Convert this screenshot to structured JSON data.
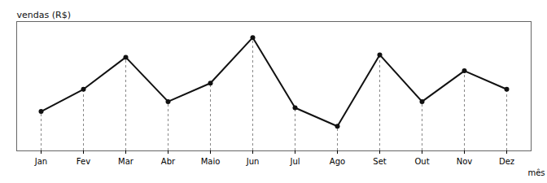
{
  "chart_data": {
    "type": "line",
    "categories": [
      "Jan",
      "Fev",
      "Mar",
      "Abr",
      "Maio",
      "Jun",
      "Jul",
      "Ago",
      "Set",
      "Out",
      "Nov",
      "Dez"
    ],
    "values": [
      3.2,
      5.0,
      7.6,
      4.0,
      5.5,
      9.2,
      3.5,
      2.0,
      7.8,
      4.0,
      6.5,
      5.0
    ],
    "xlabel": "mês",
    "ylabel": "vendas (R$)",
    "ylim": [
      0,
      10.5
    ],
    "color": "#111111",
    "marker": "o",
    "line_style": "solid",
    "tick_labels": "x",
    "grid": false
  }
}
